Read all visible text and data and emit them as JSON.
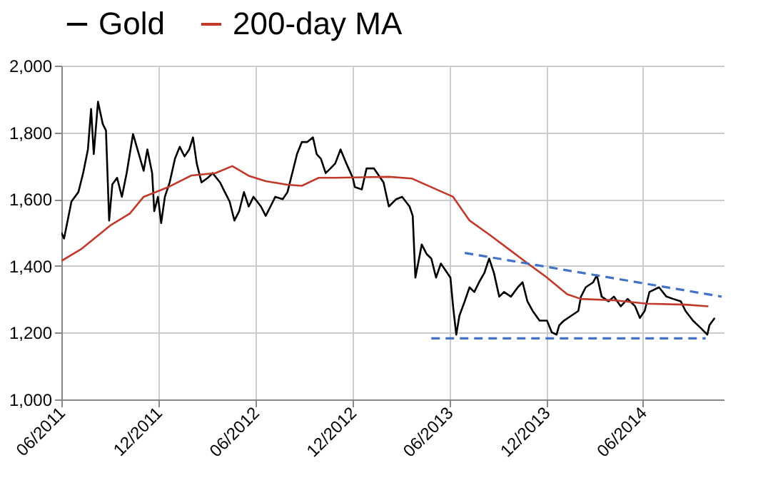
{
  "chart_data": {
    "type": "line",
    "legend": "top",
    "grid": true,
    "line_style": "solid",
    "xlim": [
      "2011-06-01",
      "2014-10-31"
    ],
    "xticks": [
      {
        "value": "2011-06-01",
        "label": "06/2011"
      },
      {
        "value": "2011-12-01",
        "label": "12/2011"
      },
      {
        "value": "2012-06-01",
        "label": "06/2012"
      },
      {
        "value": "2012-12-01",
        "label": "12/2012"
      },
      {
        "value": "2013-06-01",
        "label": "06/2013"
      },
      {
        "value": "2013-12-01",
        "label": "12/2013"
      },
      {
        "value": "2014-06-01",
        "label": "06/2014"
      }
    ],
    "ylim": [
      1000,
      2000
    ],
    "yticks": [
      {
        "value": 1000,
        "label": "1,000"
      },
      {
        "value": 1200,
        "label": "1,200"
      },
      {
        "value": 1400,
        "label": "1,400"
      },
      {
        "value": 1600,
        "label": "1,600"
      },
      {
        "value": 1800,
        "label": "1,800"
      },
      {
        "value": 2000,
        "label": "2,000"
      }
    ],
    "series": [
      {
        "name": "Gold",
        "color": "#000000",
        "x": [
          "2011-06-01",
          "2011-06-06",
          "2011-06-20",
          "2011-07-03",
          "2011-07-12",
          "2011-07-21",
          "2011-07-27",
          "2011-08-01",
          "2011-08-09",
          "2011-08-18",
          "2011-08-24",
          "2011-08-30",
          "2011-09-05",
          "2011-09-14",
          "2011-09-23",
          "2011-10-02",
          "2011-10-14",
          "2011-10-25",
          "2011-11-03",
          "2011-11-10",
          "2011-11-19",
          "2011-11-23",
          "2011-11-30",
          "2011-12-06",
          "2011-12-13",
          "2011-12-22",
          "2012-01-01",
          "2012-01-10",
          "2012-01-19",
          "2012-01-28",
          "2012-02-04",
          "2012-02-11",
          "2012-02-20",
          "2012-03-03",
          "2012-03-12",
          "2012-03-26",
          "2012-04-04",
          "2012-04-13",
          "2012-04-22",
          "2012-05-01",
          "2012-05-10",
          "2012-05-19",
          "2012-05-28",
          "2012-06-11",
          "2012-06-20",
          "2012-06-29",
          "2012-07-08",
          "2012-07-22",
          "2012-07-31",
          "2012-08-09",
          "2012-08-18",
          "2012-08-27",
          "2012-09-06",
          "2012-09-17",
          "2012-09-24",
          "2012-10-02",
          "2012-10-11",
          "2012-10-20",
          "2012-10-29",
          "2012-11-08",
          "2012-11-17",
          "2012-12-01",
          "2012-12-05",
          "2012-12-18",
          "2012-12-27",
          "2013-01-10",
          "2013-01-28",
          "2013-02-07",
          "2013-02-21",
          "2013-03-04",
          "2013-03-18",
          "2013-03-24",
          "2013-03-29",
          "2013-04-10",
          "2013-04-19",
          "2013-04-28",
          "2013-05-07",
          "2013-05-16",
          "2013-05-25",
          "2013-06-03",
          "2013-06-08",
          "2013-06-14",
          "2013-06-20",
          "2013-06-30",
          "2013-07-09",
          "2013-07-18",
          "2013-07-27",
          "2013-08-06",
          "2013-08-15",
          "2013-08-24",
          "2013-09-03",
          "2013-09-12",
          "2013-09-25",
          "2013-10-08",
          "2013-10-17",
          "2013-10-26",
          "2013-11-05",
          "2013-11-18",
          "2013-12-02",
          "2013-12-11",
          "2013-12-20",
          "2013-12-25",
          "2014-01-03",
          "2014-01-17",
          "2014-01-30",
          "2014-02-04",
          "2014-02-13",
          "2014-02-27",
          "2014-03-06",
          "2014-03-15",
          "2014-03-28",
          "2014-04-07",
          "2014-04-20",
          "2014-05-03",
          "2014-05-17",
          "2014-05-26",
          "2014-06-04",
          "2014-06-13",
          "2014-07-01",
          "2014-07-15",
          "2014-07-28",
          "2014-08-11",
          "2014-08-20",
          "2014-09-03",
          "2014-09-17",
          "2014-09-30",
          "2014-10-04",
          "2014-10-14"
        ],
        "values": [
          1500,
          1482,
          1593,
          1621,
          1678,
          1749,
          1870,
          1735,
          1892,
          1825,
          1806,
          1536,
          1644,
          1664,
          1607,
          1678,
          1795,
          1735,
          1685,
          1749,
          1678,
          1564,
          1607,
          1528,
          1607,
          1650,
          1721,
          1757,
          1728,
          1749,
          1785,
          1707,
          1650,
          1664,
          1678,
          1650,
          1621,
          1593,
          1536,
          1564,
          1621,
          1578,
          1607,
          1578,
          1550,
          1578,
          1607,
          1600,
          1621,
          1678,
          1735,
          1771,
          1771,
          1785,
          1735,
          1721,
          1678,
          1692,
          1707,
          1749,
          1714,
          1664,
          1636,
          1629,
          1692,
          1692,
          1650,
          1578,
          1600,
          1607,
          1578,
          1550,
          1365,
          1464,
          1436,
          1422,
          1365,
          1407,
          1386,
          1365,
          1279,
          1194,
          1251,
          1294,
          1336,
          1322,
          1351,
          1379,
          1422,
          1379,
          1308,
          1322,
          1308,
          1336,
          1351,
          1294,
          1265,
          1236,
          1236,
          1201,
          1194,
          1222,
          1236,
          1251,
          1265,
          1308,
          1336,
          1351,
          1372,
          1308,
          1294,
          1308,
          1279,
          1301,
          1279,
          1244,
          1265,
          1322,
          1336,
          1308,
          1301,
          1294,
          1265,
          1236,
          1215,
          1194,
          1222,
          1244
        ]
      },
      {
        "name": "200-day MA",
        "color": "#c0392b",
        "x": [
          "2011-06-01",
          "2011-07-08",
          "2011-09-01",
          "2011-10-08",
          "2011-11-03",
          "2011-12-18",
          "2012-02-01",
          "2012-03-17",
          "2012-04-18",
          "2012-05-19",
          "2012-06-20",
          "2012-07-31",
          "2012-08-27",
          "2012-09-28",
          "2012-10-29",
          "2013-02-07",
          "2013-03-22",
          "2013-04-28",
          "2013-06-08",
          "2013-07-09",
          "2013-08-15",
          "2013-09-21",
          "2013-10-26",
          "2013-12-02",
          "2014-01-09",
          "2014-02-04",
          "2014-04-07",
          "2014-06-08",
          "2014-08-20",
          "2014-10-02"
        ],
        "values": [
          1415,
          1450,
          1521,
          1557,
          1607,
          1635,
          1671,
          1678,
          1699,
          1670,
          1654,
          1643,
          1640,
          1664,
          1664,
          1667,
          1662,
          1636,
          1607,
          1536,
          1494,
          1450,
          1408,
          1365,
          1315,
          1301,
          1297,
          1287,
          1284,
          1279
        ]
      },
      {
        "type": "line",
        "color": "#4472c4",
        "line_style": "dashed",
        "x": [
          "2013-06-30",
          "2014-10-27"
        ],
        "values": [
          1439,
          1308
        ]
      },
      {
        "type": "line",
        "color": "#4472c4",
        "line_style": "dashed",
        "x": [
          "2013-04-28",
          "2014-09-27"
        ],
        "values": [
          1183,
          1183
        ]
      }
    ]
  }
}
